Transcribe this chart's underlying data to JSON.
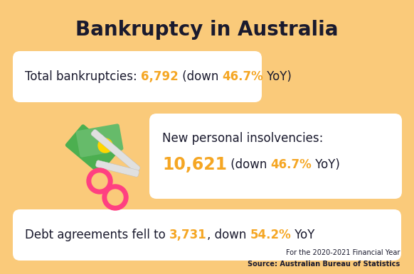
{
  "title": "Bankruptcy in Australia",
  "background_color": "#FACA7A",
  "card_color": "#FFFFFF",
  "text_dark": "#1a1a2e",
  "text_orange": "#F5A623",
  "card1_normal": "Total bankruptcies: ",
  "card1_highlight1": "6,792",
  "card1_mid": " (down ",
  "card1_highlight2": "46.7%",
  "card1_end": " YoY)",
  "card2_line1": "New personal insolvencies:",
  "card2_highlight1": "10,621",
  "card2_mid": " (down ",
  "card2_highlight2": "46.7%",
  "card2_end": " YoY)",
  "card3_normal1": "Debt agreements fell to ",
  "card3_highlight1": "3,731",
  "card3_mid": ", down ",
  "card3_highlight2": "54.2%",
  "card3_end": " YoY",
  "footnote1": "For the 2020-2021 Financial Year",
  "footnote2": "Source: Australian Bureau of Statistics",
  "title_fontsize": 20,
  "card_fontsize": 12,
  "card2_num_fontsize": 17
}
